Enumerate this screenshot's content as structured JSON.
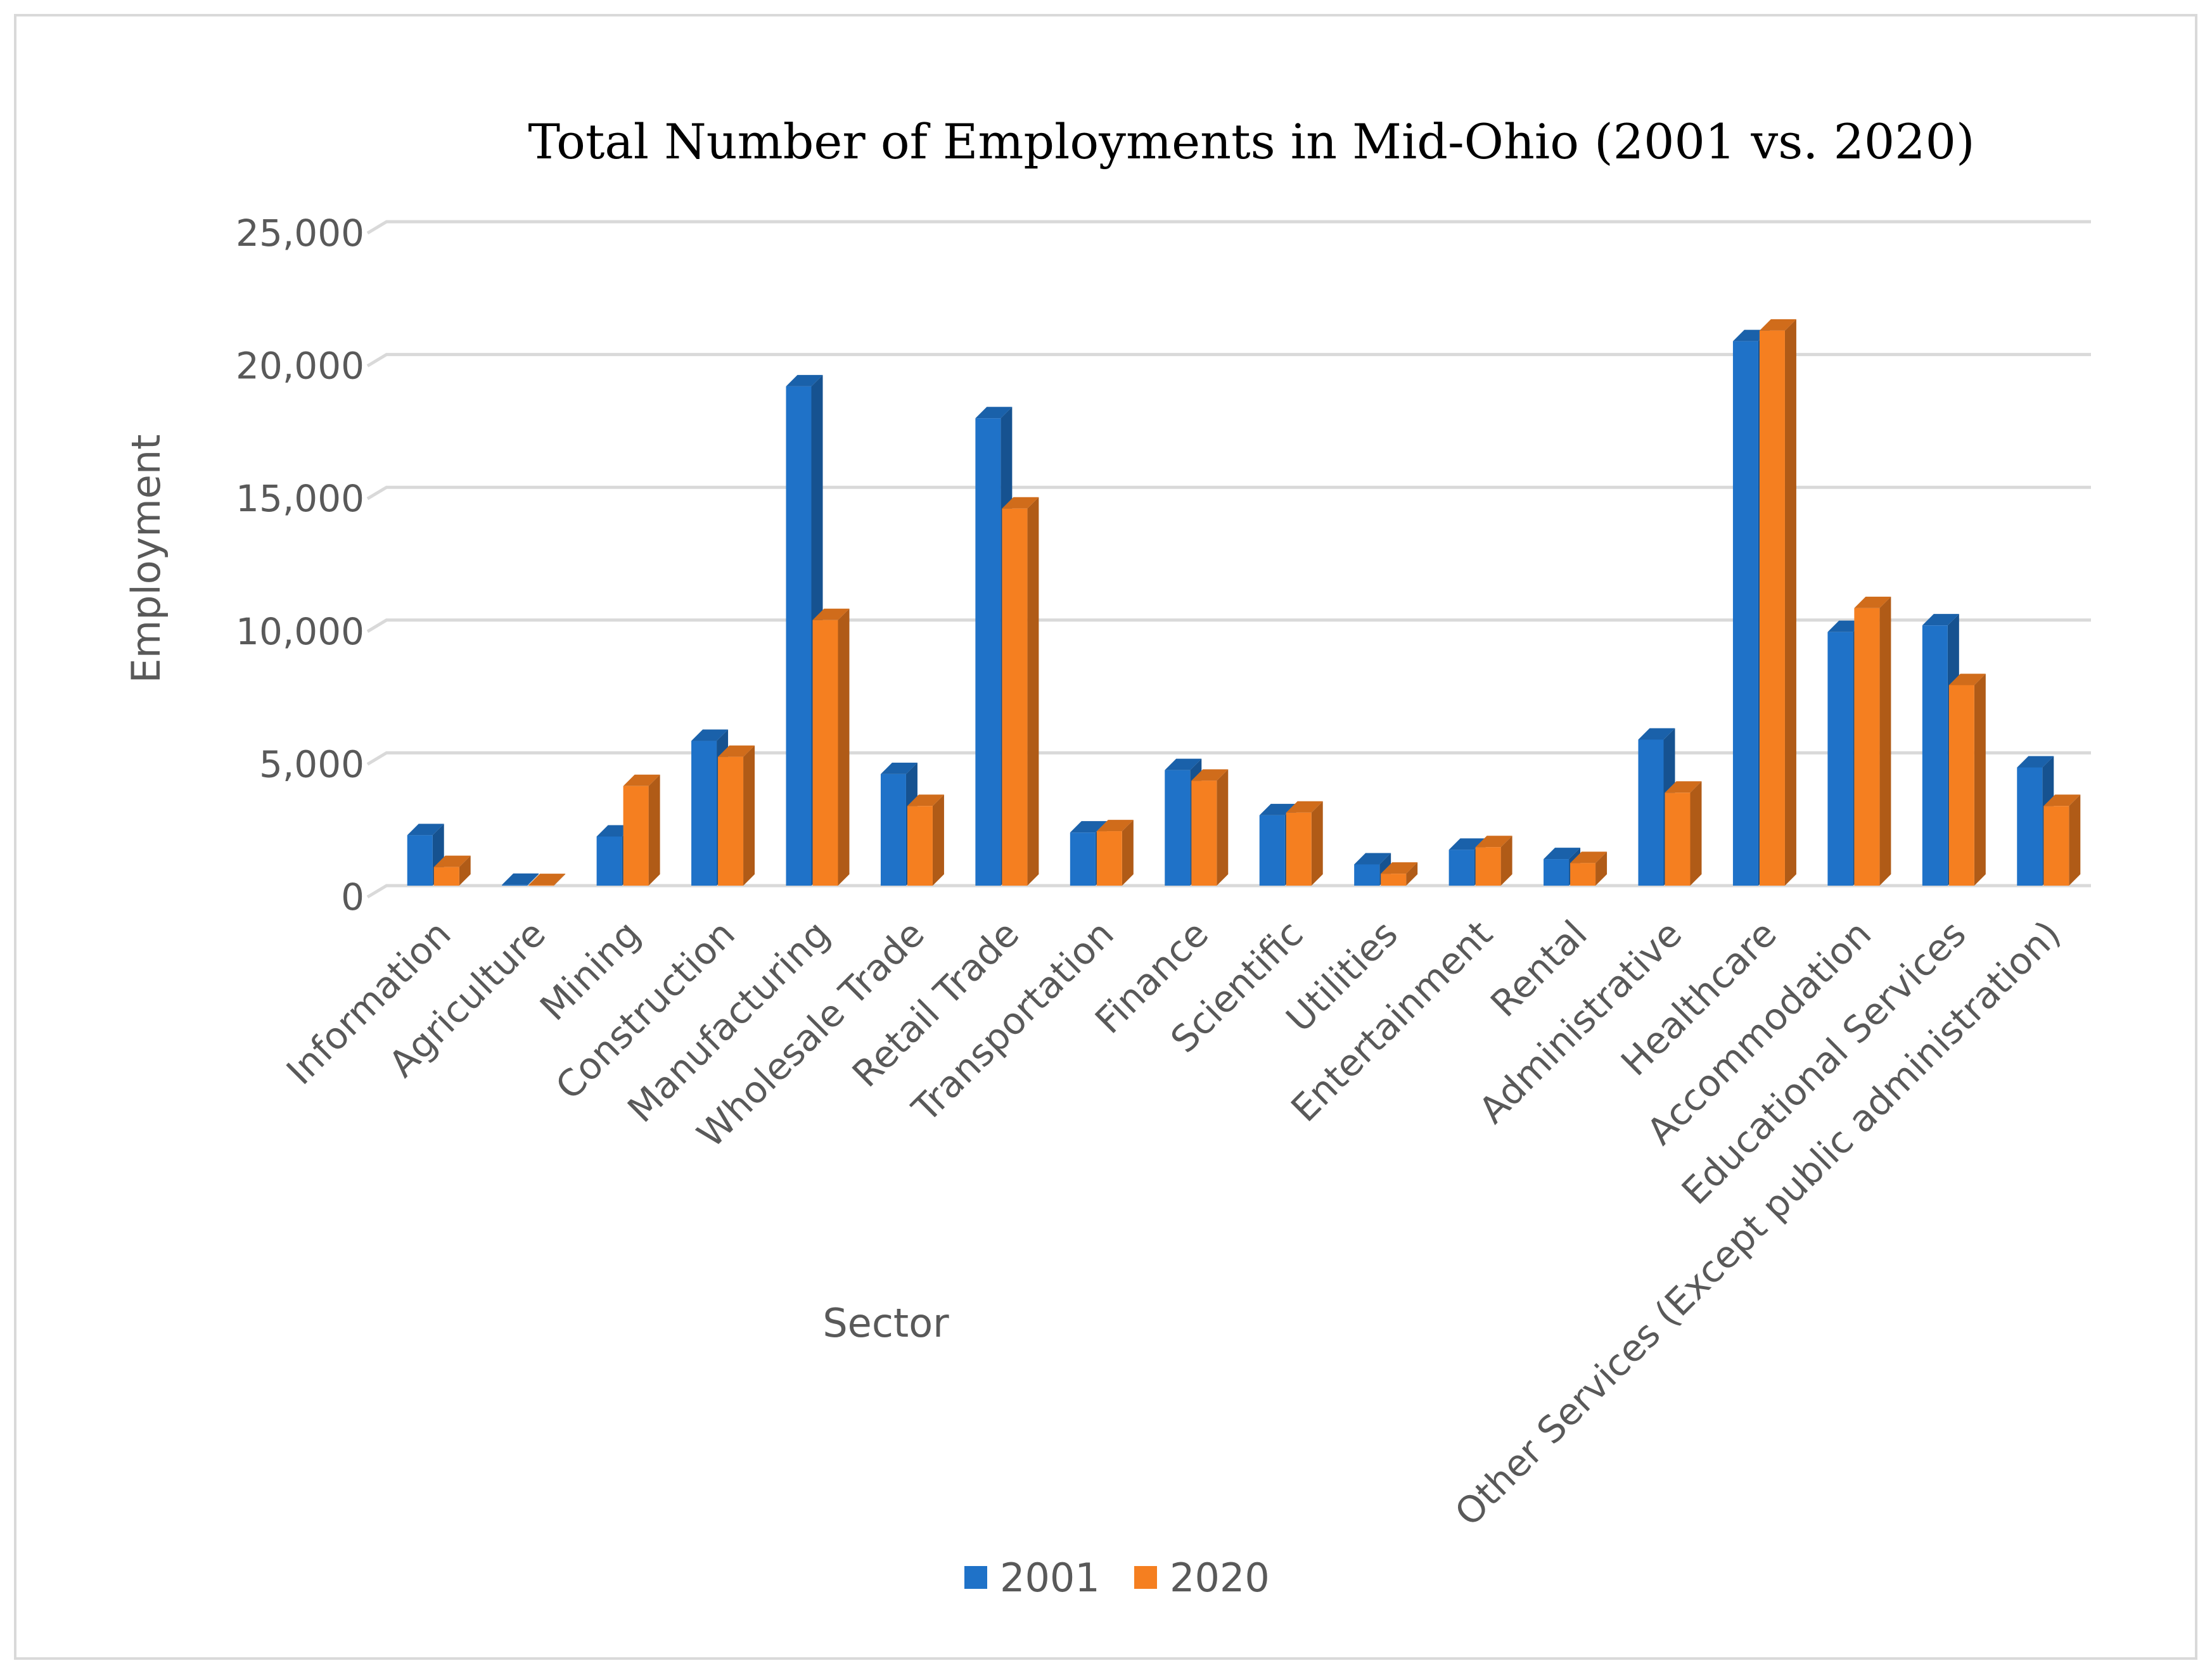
{
  "chart_data": {
    "type": "bar",
    "title": "Total Number of Employments  in Mid-Ohio (2001 vs. 2020)",
    "xlabel": "Sector",
    "ylabel": "Employment",
    "ylim": [
      0,
      25000
    ],
    "yticks": [
      0,
      5000,
      10000,
      15000,
      20000,
      25000
    ],
    "ytick_labels": [
      "0",
      "5,000",
      "10,000",
      "15,000",
      "20,000",
      "25,000"
    ],
    "grid": true,
    "legend_position": "bottom",
    "categories": [
      "Information",
      "Agriculture",
      "Mining",
      "Construction",
      "Manufacturing",
      "Wholesale Trade",
      "Retail Trade",
      "Transportation",
      "Finance",
      "Scientific",
      "Utilities",
      "Entertainment",
      "Rental",
      "Administrative",
      "Healthcare",
      "Accommodation",
      "Educational Services",
      "Other Services (Except public administration)"
    ],
    "series": [
      {
        "name": "2001",
        "color": "#1f72c8",
        "values": [
          1900,
          30,
          1850,
          5450,
          18800,
          4200,
          17600,
          2000,
          4350,
          2650,
          800,
          1350,
          1000,
          5500,
          20500,
          9550,
          9800,
          4450
        ]
      },
      {
        "name": "2020",
        "color": "#f57f20",
        "values": [
          700,
          20,
          3750,
          4850,
          10000,
          3000,
          14200,
          2050,
          3950,
          2750,
          450,
          1450,
          850,
          3500,
          20900,
          10450,
          7550,
          3000
        ]
      }
    ]
  }
}
